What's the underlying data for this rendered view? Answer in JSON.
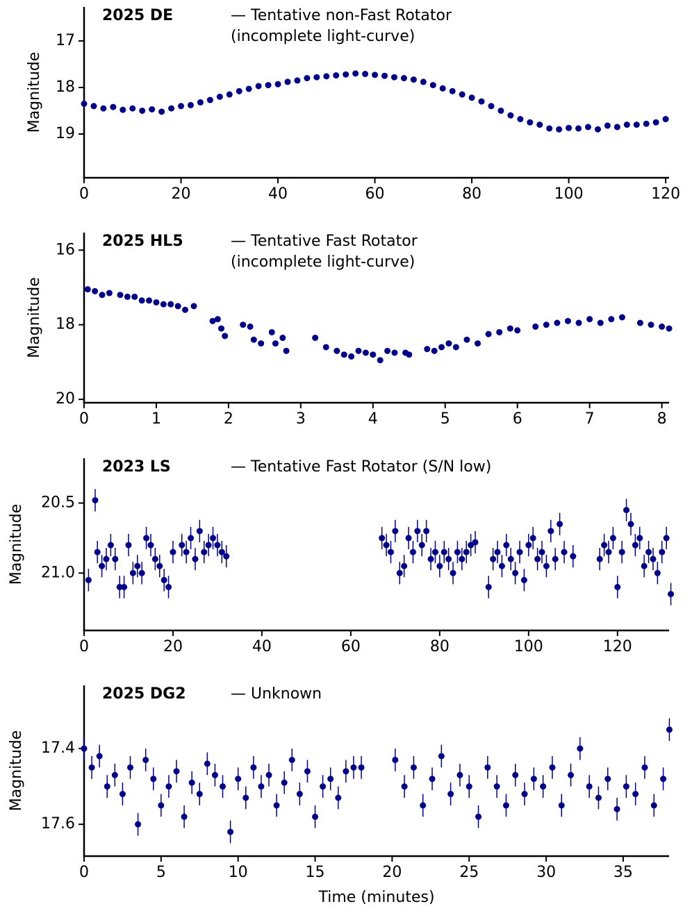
{
  "chart_data": [
    {
      "type": "scatter",
      "label": "2025 DE",
      "note": [
        "— Tentative non-Fast Rotator",
        "(incomplete light-curve)"
      ],
      "ylabel": "Magnitude",
      "color": "#00008b",
      "y_inverted": true,
      "xlim": [
        0,
        120.7
      ],
      "ylim": [
        16.27,
        19.94
      ],
      "xticks": [
        0,
        20,
        40,
        60,
        80,
        100,
        120
      ],
      "yticks": [
        17,
        18,
        19
      ],
      "yerr": 0.05,
      "x": [
        0,
        2,
        4,
        6,
        8,
        10,
        12,
        14,
        16,
        18,
        20,
        22,
        24,
        26,
        28,
        30,
        32,
        34,
        36,
        38,
        40,
        42,
        44,
        46,
        48,
        50,
        52,
        54,
        56,
        58,
        60,
        62,
        64,
        66,
        68,
        70,
        72,
        74,
        76,
        78,
        80,
        82,
        84,
        86,
        88,
        90,
        92,
        94,
        96,
        98,
        100,
        102,
        104,
        106,
        108,
        110,
        112,
        114,
        116,
        118,
        120
      ],
      "values": [
        18.35,
        18.4,
        18.45,
        18.42,
        18.48,
        18.45,
        18.5,
        18.47,
        18.52,
        18.45,
        18.4,
        18.38,
        18.32,
        18.27,
        18.2,
        18.15,
        18.08,
        18.03,
        17.97,
        17.95,
        17.93,
        17.88,
        17.85,
        17.8,
        17.78,
        17.76,
        17.74,
        17.72,
        17.7,
        17.71,
        17.73,
        17.75,
        17.78,
        17.8,
        17.83,
        17.88,
        17.95,
        18.02,
        18.08,
        18.15,
        18.22,
        18.3,
        18.4,
        18.5,
        18.6,
        18.68,
        18.75,
        18.8,
        18.88,
        18.9,
        18.87,
        18.88,
        18.85,
        18.9,
        18.82,
        18.85,
        18.8,
        18.8,
        18.78,
        18.75,
        18.68
      ]
    },
    {
      "type": "scatter",
      "label": "2025 HL5",
      "note": [
        "— Tentative Fast Rotator",
        "(incomplete light-curve)"
      ],
      "ylabel": "Magnitude",
      "color": "#00008b",
      "y_inverted": true,
      "xlim": [
        0,
        8.1
      ],
      "ylim": [
        15.53,
        20.09
      ],
      "xticks": [
        0,
        1,
        2,
        3,
        4,
        5,
        6,
        7,
        8
      ],
      "yticks": [
        16,
        18,
        20
      ],
      "yerr": 0.07,
      "x": [
        0.05,
        0.15,
        0.25,
        0.35,
        0.5,
        0.6,
        0.7,
        0.8,
        0.9,
        1.0,
        1.1,
        1.2,
        1.3,
        1.4,
        1.52,
        1.78,
        1.85,
        1.9,
        1.95,
        2.2,
        2.3,
        2.35,
        2.45,
        2.6,
        2.65,
        2.75,
        2.8,
        3.2,
        3.35,
        3.5,
        3.6,
        3.7,
        3.8,
        3.9,
        4.0,
        4.1,
        4.2,
        4.3,
        4.45,
        4.5,
        4.75,
        4.85,
        4.95,
        5.05,
        5.15,
        5.3,
        5.45,
        5.6,
        5.75,
        5.9,
        6.0,
        6.25,
        6.4,
        6.55,
        6.7,
        6.85,
        7.0,
        7.15,
        7.3,
        7.45,
        7.7,
        7.85,
        8.0,
        8.1
      ],
      "values": [
        17.05,
        17.1,
        17.2,
        17.15,
        17.2,
        17.25,
        17.25,
        17.35,
        17.35,
        17.4,
        17.45,
        17.45,
        17.5,
        17.6,
        17.5,
        17.9,
        17.85,
        18.1,
        18.3,
        18.0,
        18.05,
        18.4,
        18.5,
        18.2,
        18.5,
        18.35,
        18.7,
        18.35,
        18.6,
        18.7,
        18.8,
        18.85,
        18.7,
        18.75,
        18.8,
        18.95,
        18.7,
        18.75,
        18.75,
        18.8,
        18.65,
        18.7,
        18.6,
        18.5,
        18.6,
        18.4,
        18.5,
        18.25,
        18.2,
        18.1,
        18.15,
        18.05,
        18.0,
        17.95,
        17.9,
        17.95,
        17.85,
        17.95,
        17.85,
        17.8,
        17.95,
        18.0,
        18.05,
        18.1
      ]
    },
    {
      "type": "scatter",
      "label": "2023 LS",
      "note": [
        "— Tentative Fast Rotator (S/N low)"
      ],
      "ylabel": "Magnitude",
      "color": "#00008b",
      "y_inverted": true,
      "xlim": [
        0,
        131.6
      ],
      "ylim": [
        20.18,
        21.41
      ],
      "xticks": [
        0,
        20,
        40,
        60,
        80,
        100,
        120
      ],
      "yticks": [
        20.5,
        {
          "value": 21,
          "label": "21.0"
        }
      ],
      "yerr": 0.08,
      "x": [
        1,
        2.5,
        3,
        4,
        5,
        6,
        7,
        8,
        9,
        10,
        11,
        12,
        13,
        14,
        15,
        16,
        17,
        18,
        19,
        20,
        22,
        23,
        24,
        25,
        26,
        27,
        28,
        29,
        30,
        31,
        32,
        67,
        68,
        69,
        70,
        71,
        72,
        73,
        74,
        75,
        76,
        77,
        78,
        79,
        80,
        81,
        82,
        83,
        84,
        85,
        86,
        87,
        88,
        91,
        92,
        93,
        94,
        95,
        96,
        97,
        98,
        99,
        100,
        101,
        102,
        103,
        104,
        105,
        106,
        107,
        108,
        110,
        116,
        117,
        118,
        119,
        120,
        121,
        122,
        123,
        124,
        125,
        126,
        127,
        128,
        129,
        130,
        131,
        132
      ],
      "values": [
        21.05,
        20.48,
        20.85,
        20.95,
        20.9,
        20.8,
        20.9,
        21.1,
        21.1,
        20.8,
        21.0,
        20.95,
        21.0,
        20.75,
        20.8,
        20.9,
        20.95,
        21.05,
        21.1,
        20.85,
        20.8,
        20.85,
        20.75,
        20.9,
        20.7,
        20.85,
        20.8,
        20.75,
        20.8,
        20.85,
        20.88,
        20.75,
        20.8,
        20.85,
        20.7,
        21.0,
        20.95,
        20.75,
        20.85,
        20.7,
        20.8,
        20.7,
        20.9,
        20.85,
        20.95,
        20.85,
        20.9,
        21.0,
        20.85,
        20.9,
        20.85,
        20.8,
        20.78,
        21.1,
        20.9,
        20.85,
        20.95,
        20.8,
        20.9,
        21.0,
        20.85,
        21.05,
        20.8,
        20.75,
        20.9,
        20.85,
        20.95,
        20.7,
        20.9,
        20.65,
        20.85,
        20.88,
        20.9,
        20.8,
        20.85,
        20.75,
        21.1,
        20.85,
        20.55,
        20.65,
        20.8,
        20.75,
        20.95,
        20.85,
        20.9,
        21.0,
        20.85,
        20.75,
        21.15
      ]
    },
    {
      "type": "scatter",
      "label": "2025 DG2",
      "note": [
        "— Unknown"
      ],
      "ylabel": "Magnitude",
      "xlabel": "Time (minutes)",
      "color": "#00008b",
      "y_inverted": true,
      "xlim": [
        0,
        37.98
      ],
      "ylim": [
        17.233,
        17.684
      ],
      "xticks": [
        0,
        5,
        10,
        15,
        20,
        25,
        30,
        35
      ],
      "yticks": [
        17.4,
        17.6
      ],
      "yerr": 0.03,
      "x": [
        0,
        0.5,
        1,
        1.5,
        2,
        2.5,
        3,
        3.5,
        4,
        4.5,
        5,
        5.5,
        6,
        6.5,
        7,
        7.5,
        8,
        8.5,
        9,
        9.5,
        10,
        10.5,
        11,
        11.5,
        12,
        12.5,
        13,
        13.5,
        14,
        14.5,
        15,
        15.5,
        16,
        16.5,
        17,
        17.5,
        18,
        20.2,
        20.8,
        21.4,
        22.0,
        22.6,
        23.2,
        23.8,
        24.4,
        25.0,
        25.6,
        26.2,
        26.8,
        27.4,
        28.0,
        28.6,
        29.2,
        29.8,
        30.4,
        31.0,
        31.6,
        32.2,
        32.8,
        33.4,
        34.0,
        34.6,
        35.2,
        35.8,
        36.4,
        37.0,
        37.6,
        38.0
      ],
      "values": [
        17.4,
        17.45,
        17.42,
        17.5,
        17.47,
        17.52,
        17.45,
        17.6,
        17.43,
        17.48,
        17.55,
        17.5,
        17.46,
        17.58,
        17.49,
        17.52,
        17.44,
        17.47,
        17.5,
        17.62,
        17.48,
        17.53,
        17.45,
        17.5,
        17.47,
        17.55,
        17.49,
        17.43,
        17.52,
        17.46,
        17.58,
        17.5,
        17.48,
        17.53,
        17.46,
        17.45,
        17.45,
        17.43,
        17.5,
        17.45,
        17.55,
        17.48,
        17.42,
        17.52,
        17.47,
        17.5,
        17.58,
        17.45,
        17.5,
        17.55,
        17.47,
        17.52,
        17.48,
        17.5,
        17.45,
        17.55,
        17.47,
        17.4,
        17.5,
        17.53,
        17.48,
        17.56,
        17.5,
        17.52,
        17.45,
        17.55,
        17.48,
        17.35
      ]
    }
  ]
}
